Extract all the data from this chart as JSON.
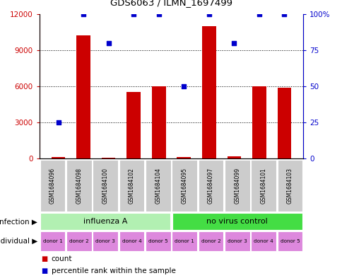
{
  "title": "GDS6063 / ILMN_1697499",
  "samples": [
    "GSM1684096",
    "GSM1684098",
    "GSM1684100",
    "GSM1684102",
    "GSM1684104",
    "GSM1684095",
    "GSM1684097",
    "GSM1684099",
    "GSM1684101",
    "GSM1684103"
  ],
  "counts": [
    100,
    10200,
    50,
    5500,
    6000,
    100,
    11000,
    200,
    6000,
    5900
  ],
  "percentiles": [
    25,
    100,
    80,
    100,
    100,
    50,
    100,
    80,
    100,
    100
  ],
  "bar_color": "#cc0000",
  "dot_color": "#0000cc",
  "ylim_left": [
    0,
    12000
  ],
  "ylim_right": [
    0,
    100
  ],
  "yticks_left": [
    0,
    3000,
    6000,
    9000,
    12000
  ],
  "ytick_labels_left": [
    "0",
    "3000",
    "6000",
    "9000",
    "12000"
  ],
  "yticks_right": [
    0,
    25,
    50,
    75,
    100
  ],
  "ytick_labels_right": [
    "0",
    "25",
    "50",
    "75",
    "100%"
  ],
  "infection_labels": [
    "influenza A",
    "no virus control"
  ],
  "infection_colors": [
    "#b2f0b2",
    "#44dd44"
  ],
  "individual_labels": [
    "donor 1",
    "donor 2",
    "donor 3",
    "donor 4",
    "donor 5",
    "donor 1",
    "donor 2",
    "donor 3",
    "donor 4",
    "donor 5"
  ],
  "individual_color": "#dd88dd",
  "sample_bg_color": "#cccccc",
  "infection_row_label": "infection",
  "individual_row_label": "individual",
  "legend_count_color": "#cc0000",
  "legend_pct_color": "#0000cc",
  "legend_count_label": "count",
  "legend_pct_label": "percentile rank within the sample"
}
